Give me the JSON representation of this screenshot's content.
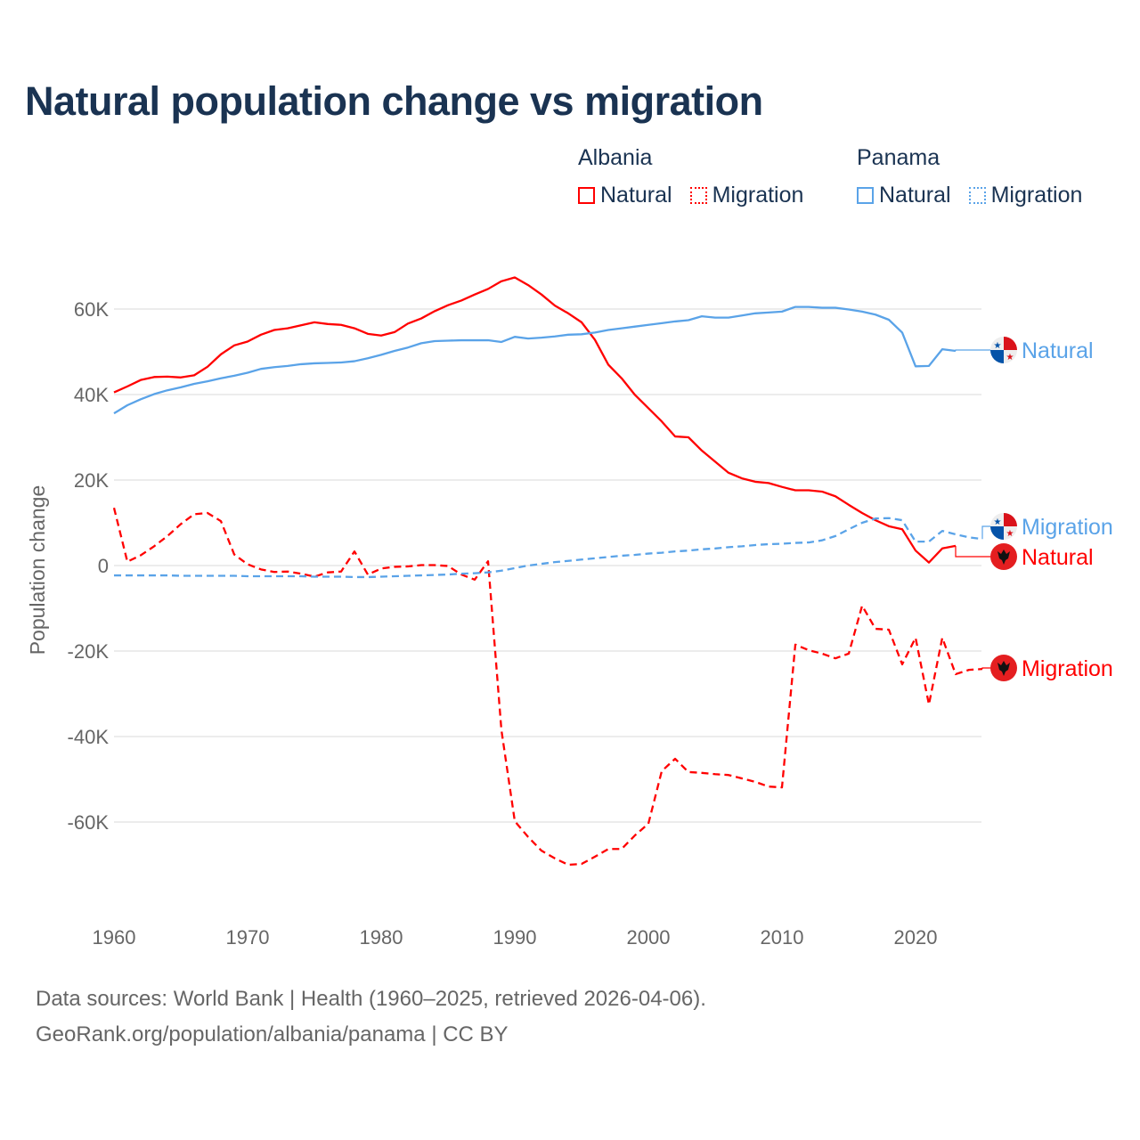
{
  "colors": {
    "albania": "#ff0000",
    "panama": "#5aa3e8",
    "title": "#1a3352"
  },
  "legend": {
    "groups": [
      {
        "name": "Albania",
        "items": [
          {
            "label": "Natural",
            "style": "solid"
          },
          {
            "label": "Migration",
            "style": "dotted"
          }
        ]
      },
      {
        "name": "Panama",
        "items": [
          {
            "label": "Natural",
            "style": "solid"
          },
          {
            "label": "Migration",
            "style": "dotted"
          }
        ]
      }
    ]
  },
  "footer": {
    "line1": "Data sources: World Bank | Health (1960–2025, retrieved 2026-04-06).",
    "line2": "GeoRank.org/population/albania/panama | CC BY"
  },
  "chart_data": {
    "type": "line",
    "title": "Natural population change vs migration",
    "xlabel": "",
    "ylabel": "Population change",
    "xlim": [
      1960,
      2025
    ],
    "ylim": [
      -75000,
      70000
    ],
    "x_ticks": [
      "1960",
      "1970",
      "1980",
      "1990",
      "2000",
      "2010",
      "2020"
    ],
    "y_ticks": [
      {
        "value": 60000,
        "label": "60K"
      },
      {
        "value": 40000,
        "label": "40K"
      },
      {
        "value": 20000,
        "label": "20K"
      },
      {
        "value": 0,
        "label": "0"
      },
      {
        "value": -20000,
        "label": "-20K"
      },
      {
        "value": -40000,
        "label": "-40K"
      },
      {
        "value": -60000,
        "label": "-60K"
      }
    ],
    "grid": true,
    "legend_position": "top-right",
    "series": [
      {
        "name": "Albania Natural",
        "country": "Albania",
        "end_label": "Natural",
        "color": "#ff0000",
        "dash": "solid",
        "flag": "albania-flag-icon",
        "x_start": 1960,
        "values": [
          40500,
          41900,
          43400,
          44100,
          44200,
          44000,
          44500,
          46500,
          49400,
          51500,
          52400,
          54000,
          55100,
          55500,
          56200,
          56900,
          56500,
          56300,
          55500,
          54200,
          53800,
          54600,
          56600,
          57800,
          59500,
          60900,
          62000,
          63400,
          64700,
          66500,
          67400,
          65600,
          63400,
          60800,
          59000,
          56900,
          52800,
          47000,
          43800,
          39900,
          36800,
          33700,
          30200,
          30000,
          26900,
          24300,
          21700,
          20400,
          19600,
          19300,
          18400,
          17600,
          17600,
          17300,
          16200,
          14200,
          12300,
          10600,
          9200,
          8500,
          3500,
          700,
          4000,
          4600
        ]
      },
      {
        "name": "Albania Migration",
        "country": "Albania",
        "end_label": "Migration",
        "color": "#ff0000",
        "dash": "dashed",
        "flag": "albania-flag-icon",
        "x_start": 1960,
        "values": [
          13500,
          900,
          2400,
          4500,
          6900,
          9700,
          12000,
          12300,
          10400,
          2600,
          300,
          -900,
          -1500,
          -1400,
          -1900,
          -2600,
          -1600,
          -1400,
          3300,
          -2100,
          -700,
          -300,
          -200,
          100,
          100,
          -100,
          -2100,
          -3300,
          1000,
          -38500,
          -59800,
          -63500,
          -66700,
          -68500,
          -70000,
          -69800,
          -68100,
          -66300,
          -66300,
          -63100,
          -60400,
          -48100,
          -45200,
          -48300,
          -48500,
          -48800,
          -49000,
          -49800,
          -50600,
          -51700,
          -51900,
          -18500,
          -19800,
          -20600,
          -21700,
          -20600,
          -9400,
          -14800,
          -15000,
          -23100,
          -16900,
          -32500,
          -16900,
          -25400,
          -24400,
          -24200
        ]
      },
      {
        "name": "Panama Natural",
        "country": "Panama",
        "end_label": "Natural",
        "color": "#5aa3e8",
        "dash": "solid",
        "flag": "panama-flag-icon",
        "x_start": 1960,
        "values": [
          35600,
          37500,
          38900,
          40100,
          41000,
          41700,
          42500,
          43100,
          43800,
          44400,
          45100,
          46000,
          46400,
          46700,
          47100,
          47300,
          47400,
          47500,
          47800,
          48500,
          49300,
          50200,
          51000,
          52000,
          52500,
          52600,
          52700,
          52700,
          52700,
          52300,
          53500,
          53100,
          53300,
          53600,
          54000,
          54100,
          54500,
          55100,
          55500,
          55900,
          56300,
          56700,
          57100,
          57400,
          58300,
          58000,
          58000,
          58500,
          59000,
          59200,
          59400,
          60500,
          60500,
          60300,
          60300,
          59900,
          59400,
          58700,
          57500,
          54500,
          46600,
          46700,
          50600,
          50200
        ]
      },
      {
        "name": "Panama Migration",
        "country": "Panama",
        "end_label": "Migration",
        "color": "#5aa3e8",
        "dash": "dashed",
        "flag": "panama-flag-icon",
        "x_start": 1960,
        "values": [
          -2300,
          -2300,
          -2300,
          -2300,
          -2300,
          -2400,
          -2400,
          -2400,
          -2400,
          -2400,
          -2500,
          -2500,
          -2500,
          -2500,
          -2500,
          -2600,
          -2600,
          -2600,
          -2700,
          -2700,
          -2600,
          -2500,
          -2400,
          -2300,
          -2200,
          -2100,
          -1900,
          -1800,
          -1600,
          -1200,
          -600,
          0,
          400,
          800,
          1100,
          1400,
          1700,
          2000,
          2300,
          2500,
          2800,
          3000,
          3300,
          3500,
          3800,
          4000,
          4300,
          4500,
          4800,
          5000,
          5100,
          5300,
          5400,
          5900,
          6900,
          8500,
          10000,
          11000,
          11100,
          10600,
          5600,
          5600,
          8100,
          7300,
          6600,
          6200
        ]
      }
    ]
  }
}
